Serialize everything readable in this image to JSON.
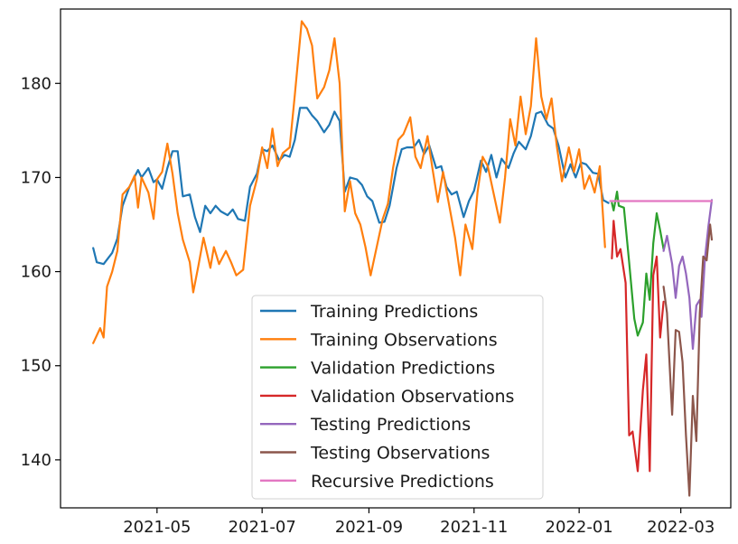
{
  "chart_data": {
    "type": "line",
    "title": "",
    "xlabel": "",
    "ylabel": "",
    "x_type": "date",
    "xlim": [
      "2021-03-06",
      "2022-03-30"
    ],
    "ylim": [
      134.9,
      187.9
    ],
    "x_ticks": [
      {
        "date": "2021-05-01",
        "label": "2021-05"
      },
      {
        "date": "2021-07-01",
        "label": "2021-07"
      },
      {
        "date": "2021-09-01",
        "label": "2021-09"
      },
      {
        "date": "2021-11-01",
        "label": "2021-11"
      },
      {
        "date": "2022-01-01",
        "label": "2022-01"
      },
      {
        "date": "2022-03-01",
        "label": "2022-03"
      }
    ],
    "y_ticks": [
      140,
      150,
      160,
      170,
      180
    ],
    "grid": false,
    "legend_position": "bottom-center",
    "series": [
      {
        "name": "Training Predictions",
        "color": "#1f77b4",
        "points": [
          [
            "2021-03-25",
            162.5
          ],
          [
            "2021-03-27",
            161.0
          ],
          [
            "2021-03-31",
            160.8
          ],
          [
            "2021-04-05",
            162.0
          ],
          [
            "2021-04-08",
            163.5
          ],
          [
            "2021-04-11",
            167.0
          ],
          [
            "2021-04-15",
            169.0
          ],
          [
            "2021-04-20",
            170.8
          ],
          [
            "2021-04-22",
            170.0
          ],
          [
            "2021-04-26",
            171.0
          ],
          [
            "2021-04-29",
            169.5
          ],
          [
            "2021-05-01",
            169.8
          ],
          [
            "2021-05-04",
            168.8
          ],
          [
            "2021-05-07",
            171.0
          ],
          [
            "2021-05-10",
            172.8
          ],
          [
            "2021-05-13",
            172.8
          ],
          [
            "2021-05-16",
            168.0
          ],
          [
            "2021-05-20",
            168.2
          ],
          [
            "2021-05-23",
            165.8
          ],
          [
            "2021-05-26",
            164.2
          ],
          [
            "2021-05-29",
            167.0
          ],
          [
            "2021-06-01",
            166.2
          ],
          [
            "2021-06-04",
            167.0
          ],
          [
            "2021-06-07",
            166.4
          ],
          [
            "2021-06-11",
            166.0
          ],
          [
            "2021-06-14",
            166.6
          ],
          [
            "2021-06-17",
            165.6
          ],
          [
            "2021-06-21",
            165.4
          ],
          [
            "2021-06-24",
            169.0
          ],
          [
            "2021-06-28",
            170.4
          ],
          [
            "2021-07-01",
            173.0
          ],
          [
            "2021-07-04",
            172.8
          ],
          [
            "2021-07-07",
            173.4
          ],
          [
            "2021-07-11",
            171.8
          ],
          [
            "2021-07-14",
            172.4
          ],
          [
            "2021-07-17",
            172.2
          ],
          [
            "2021-07-20",
            174.0
          ],
          [
            "2021-07-23",
            177.4
          ],
          [
            "2021-07-27",
            177.4
          ],
          [
            "2021-07-30",
            176.6
          ],
          [
            "2021-08-02",
            176.0
          ],
          [
            "2021-08-06",
            174.8
          ],
          [
            "2021-08-09",
            175.6
          ],
          [
            "2021-08-12",
            177.0
          ],
          [
            "2021-08-15",
            176.0
          ],
          [
            "2021-08-18",
            168.5
          ],
          [
            "2021-08-21",
            170.0
          ],
          [
            "2021-08-25",
            169.8
          ],
          [
            "2021-08-28",
            169.2
          ],
          [
            "2021-08-31",
            168.0
          ],
          [
            "2021-09-03",
            167.5
          ],
          [
            "2021-09-07",
            165.2
          ],
          [
            "2021-09-10",
            165.3
          ],
          [
            "2021-09-13",
            167.0
          ],
          [
            "2021-09-17",
            171.0
          ],
          [
            "2021-09-20",
            173.0
          ],
          [
            "2021-09-23",
            173.2
          ],
          [
            "2021-09-27",
            173.2
          ],
          [
            "2021-09-30",
            174.0
          ],
          [
            "2021-10-03",
            172.5
          ],
          [
            "2021-10-06",
            173.4
          ],
          [
            "2021-10-10",
            171.0
          ],
          [
            "2021-10-13",
            171.2
          ],
          [
            "2021-10-16",
            169.0
          ],
          [
            "2021-10-19",
            168.2
          ],
          [
            "2021-10-22",
            168.5
          ],
          [
            "2021-10-26",
            165.8
          ],
          [
            "2021-10-29",
            167.5
          ],
          [
            "2021-11-01",
            168.6
          ],
          [
            "2021-11-05",
            171.8
          ],
          [
            "2021-11-08",
            170.6
          ],
          [
            "2021-11-11",
            172.4
          ],
          [
            "2021-11-14",
            170.0
          ],
          [
            "2021-11-17",
            172.0
          ],
          [
            "2021-11-21",
            171.0
          ],
          [
            "2021-11-24",
            172.6
          ],
          [
            "2021-11-27",
            173.8
          ],
          [
            "2021-12-01",
            173.0
          ],
          [
            "2021-12-04",
            174.4
          ],
          [
            "2021-12-07",
            176.8
          ],
          [
            "2021-12-10",
            177.0
          ],
          [
            "2021-12-14",
            175.6
          ],
          [
            "2021-12-17",
            175.2
          ],
          [
            "2021-12-20",
            173.4
          ],
          [
            "2021-12-24",
            170.0
          ],
          [
            "2021-12-27",
            171.4
          ],
          [
            "2021-12-30",
            170.0
          ],
          [
            "2022-01-02",
            171.6
          ],
          [
            "2022-01-05",
            171.4
          ],
          [
            "2022-01-09",
            170.5
          ],
          [
            "2022-01-12",
            170.4
          ],
          [
            "2022-01-15",
            167.6
          ],
          [
            "2022-01-18",
            167.3
          ]
        ]
      },
      {
        "name": "Training Observations",
        "color": "#ff7f0e",
        "points": [
          [
            "2021-03-25",
            152.4
          ],
          [
            "2021-03-29",
            154.0
          ],
          [
            "2021-03-31",
            153.0
          ],
          [
            "2021-04-02",
            158.4
          ],
          [
            "2021-04-05",
            160.0
          ],
          [
            "2021-04-08",
            162.2
          ],
          [
            "2021-04-11",
            168.2
          ],
          [
            "2021-04-15",
            169.0
          ],
          [
            "2021-04-18",
            170.2
          ],
          [
            "2021-04-20",
            166.8
          ],
          [
            "2021-04-22",
            170.0
          ],
          [
            "2021-04-26",
            168.4
          ],
          [
            "2021-04-29",
            165.6
          ],
          [
            "2021-05-01",
            169.8
          ],
          [
            "2021-05-04",
            170.6
          ],
          [
            "2021-05-07",
            173.6
          ],
          [
            "2021-05-10",
            170.4
          ],
          [
            "2021-05-13",
            166.2
          ],
          [
            "2021-05-16",
            163.4
          ],
          [
            "2021-05-20",
            161.0
          ],
          [
            "2021-05-22",
            157.8
          ],
          [
            "2021-05-25",
            160.6
          ],
          [
            "2021-05-28",
            163.6
          ],
          [
            "2021-06-01",
            160.4
          ],
          [
            "2021-06-03",
            162.6
          ],
          [
            "2021-06-06",
            160.8
          ],
          [
            "2021-06-10",
            162.2
          ],
          [
            "2021-06-13",
            161.0
          ],
          [
            "2021-06-16",
            159.6
          ],
          [
            "2021-06-20",
            160.2
          ],
          [
            "2021-06-24",
            167.0
          ],
          [
            "2021-06-28",
            169.8
          ],
          [
            "2021-07-01",
            173.2
          ],
          [
            "2021-07-04",
            171.0
          ],
          [
            "2021-07-07",
            175.2
          ],
          [
            "2021-07-10",
            171.2
          ],
          [
            "2021-07-13",
            172.6
          ],
          [
            "2021-07-17",
            173.2
          ],
          [
            "2021-07-20",
            178.8
          ],
          [
            "2021-07-24",
            186.6
          ],
          [
            "2021-07-27",
            185.8
          ],
          [
            "2021-07-30",
            184.0
          ],
          [
            "2021-08-02",
            178.4
          ],
          [
            "2021-08-06",
            179.6
          ],
          [
            "2021-08-09",
            181.4
          ],
          [
            "2021-08-12",
            184.8
          ],
          [
            "2021-08-15",
            180.0
          ],
          [
            "2021-08-18",
            166.4
          ],
          [
            "2021-08-21",
            169.6
          ],
          [
            "2021-08-24",
            166.2
          ],
          [
            "2021-08-27",
            165.0
          ],
          [
            "2021-08-30",
            162.6
          ],
          [
            "2021-09-02",
            159.6
          ],
          [
            "2021-09-05",
            162.2
          ],
          [
            "2021-09-09",
            165.6
          ],
          [
            "2021-09-12",
            167.2
          ],
          [
            "2021-09-15",
            171.0
          ],
          [
            "2021-09-18",
            174.0
          ],
          [
            "2021-09-21",
            174.6
          ],
          [
            "2021-09-25",
            176.4
          ],
          [
            "2021-09-28",
            172.2
          ],
          [
            "2021-10-01",
            171.0
          ],
          [
            "2021-10-05",
            174.4
          ],
          [
            "2021-10-08",
            170.8
          ],
          [
            "2021-10-11",
            167.4
          ],
          [
            "2021-10-14",
            170.6
          ],
          [
            "2021-10-18",
            166.6
          ],
          [
            "2021-10-21",
            163.6
          ],
          [
            "2021-10-24",
            159.6
          ],
          [
            "2021-10-27",
            165.0
          ],
          [
            "2021-10-31",
            162.4
          ],
          [
            "2021-11-03",
            168.4
          ],
          [
            "2021-11-06",
            172.2
          ],
          [
            "2021-11-09",
            171.2
          ],
          [
            "2021-11-12",
            168.6
          ],
          [
            "2021-11-16",
            165.2
          ],
          [
            "2021-11-19",
            170.0
          ],
          [
            "2021-11-22",
            176.2
          ],
          [
            "2021-11-25",
            173.4
          ],
          [
            "2021-11-28",
            178.6
          ],
          [
            "2021-12-01",
            174.6
          ],
          [
            "2021-12-04",
            177.6
          ],
          [
            "2021-12-07",
            184.8
          ],
          [
            "2021-12-10",
            178.6
          ],
          [
            "2021-12-13",
            176.2
          ],
          [
            "2021-12-16",
            178.4
          ],
          [
            "2021-12-19",
            173.4
          ],
          [
            "2021-12-22",
            169.6
          ],
          [
            "2021-12-26",
            173.2
          ],
          [
            "2021-12-29",
            170.6
          ],
          [
            "2022-01-01",
            173.0
          ],
          [
            "2022-01-04",
            168.8
          ],
          [
            "2022-01-07",
            170.2
          ],
          [
            "2022-01-10",
            168.4
          ],
          [
            "2022-01-13",
            171.2
          ],
          [
            "2022-01-16",
            162.6
          ]
        ]
      },
      {
        "name": "Validation Predictions",
        "color": "#2ca02c",
        "points": [
          [
            "2022-01-20",
            167.3
          ],
          [
            "2022-01-21",
            166.5
          ],
          [
            "2022-01-23",
            168.5
          ],
          [
            "2022-01-24",
            167.0
          ],
          [
            "2022-01-27",
            166.8
          ],
          [
            "2022-01-30",
            161.0
          ],
          [
            "2022-02-02",
            155.0
          ],
          [
            "2022-02-04",
            153.2
          ],
          [
            "2022-02-07",
            154.6
          ],
          [
            "2022-02-09",
            159.8
          ],
          [
            "2022-02-11",
            157.0
          ],
          [
            "2022-02-13",
            163.0
          ],
          [
            "2022-02-15",
            166.2
          ],
          [
            "2022-02-17",
            164.4
          ],
          [
            "2022-02-19",
            162.4
          ]
        ]
      },
      {
        "name": "Validation Observations",
        "color": "#d62728",
        "points": [
          [
            "2022-01-20",
            161.4
          ],
          [
            "2022-01-21",
            165.4
          ],
          [
            "2022-01-23",
            161.6
          ],
          [
            "2022-01-25",
            162.4
          ],
          [
            "2022-01-28",
            158.8
          ],
          [
            "2022-01-30",
            142.6
          ],
          [
            "2022-02-01",
            143.0
          ],
          [
            "2022-02-04",
            138.8
          ],
          [
            "2022-02-07",
            147.4
          ],
          [
            "2022-02-09",
            151.2
          ],
          [
            "2022-02-11",
            138.8
          ],
          [
            "2022-02-13",
            159.6
          ],
          [
            "2022-02-15",
            161.6
          ],
          [
            "2022-02-17",
            153.0
          ],
          [
            "2022-02-19",
            156.8
          ]
        ]
      },
      {
        "name": "Testing Predictions",
        "color": "#9467bd",
        "points": [
          [
            "2022-02-19",
            162.2
          ],
          [
            "2022-02-21",
            163.8
          ],
          [
            "2022-02-24",
            160.8
          ],
          [
            "2022-02-26",
            157.2
          ],
          [
            "2022-02-28",
            160.6
          ],
          [
            "2022-03-02",
            161.6
          ],
          [
            "2022-03-04",
            159.8
          ],
          [
            "2022-03-06",
            157.2
          ],
          [
            "2022-03-08",
            151.8
          ],
          [
            "2022-03-10",
            156.4
          ],
          [
            "2022-03-12",
            157.0
          ],
          [
            "2022-03-13",
            155.2
          ],
          [
            "2022-03-15",
            161.4
          ],
          [
            "2022-03-17",
            164.8
          ],
          [
            "2022-03-19",
            167.6
          ]
        ]
      },
      {
        "name": "Testing Observations",
        "color": "#8c564b",
        "points": [
          [
            "2022-02-19",
            158.4
          ],
          [
            "2022-02-21",
            155.6
          ],
          [
            "2022-02-24",
            144.8
          ],
          [
            "2022-02-26",
            153.8
          ],
          [
            "2022-02-28",
            153.6
          ],
          [
            "2022-03-02",
            150.4
          ],
          [
            "2022-03-04",
            142.6
          ],
          [
            "2022-03-06",
            136.2
          ],
          [
            "2022-03-08",
            146.8
          ],
          [
            "2022-03-10",
            142.0
          ],
          [
            "2022-03-12",
            155.6
          ],
          [
            "2022-03-14",
            161.6
          ],
          [
            "2022-03-16",
            161.2
          ],
          [
            "2022-03-18",
            165.0
          ],
          [
            "2022-03-19",
            163.4
          ]
        ]
      },
      {
        "name": "Recursive Predictions",
        "color": "#e377c2",
        "points": [
          [
            "2022-01-19",
            167.5
          ],
          [
            "2022-03-19",
            167.5
          ]
        ]
      }
    ]
  }
}
